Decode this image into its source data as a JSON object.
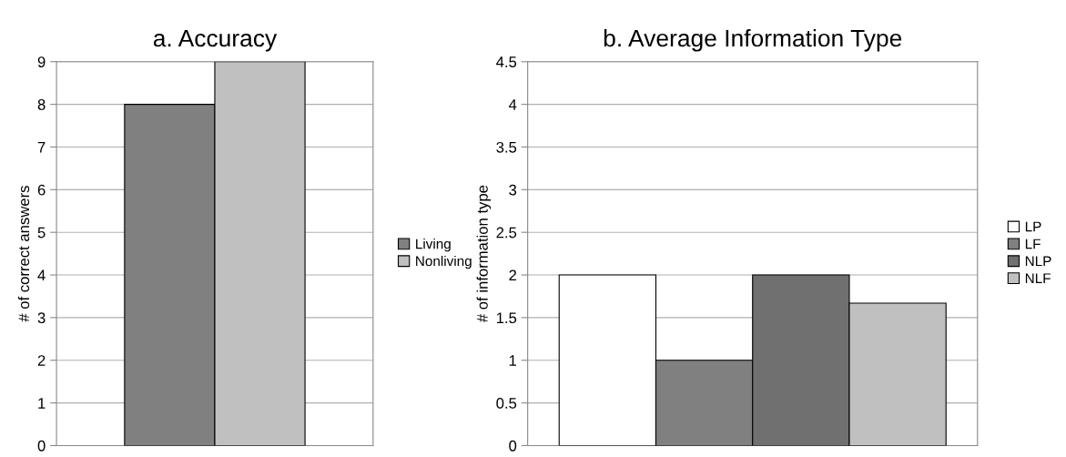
{
  "chart_data": [
    {
      "type": "bar",
      "title": "a. Accuracy",
      "ylabel": "# of correct answers",
      "categories": [
        null
      ],
      "series": [
        {
          "name": "Living",
          "color": "#808080",
          "values": [
            8
          ]
        },
        {
          "name": "Nonliving",
          "color": "#c0c0c0",
          "values": [
            9
          ]
        }
      ],
      "ylim": [
        0,
        9
      ],
      "yticks": [
        0,
        1,
        2,
        3,
        4,
        5,
        6,
        7,
        8,
        9
      ],
      "grid": "y",
      "legend": "right"
    },
    {
      "type": "bar",
      "title": "b. Average Information Type",
      "ylabel": "# of information type",
      "categories": [
        null
      ],
      "series": [
        {
          "name": "LP",
          "color": "#ffffff",
          "values": [
            2
          ]
        },
        {
          "name": "LF",
          "color": "#808080",
          "values": [
            1
          ]
        },
        {
          "name": "NLP",
          "color": "#707070",
          "values": [
            2
          ]
        },
        {
          "name": "NLF",
          "color": "#c0c0c0",
          "values": [
            1.67
          ]
        }
      ],
      "ylim": [
        0,
        4.5
      ],
      "yticks": [
        0,
        0.5,
        1,
        1.5,
        2,
        2.5,
        3,
        3.5,
        4,
        4.5
      ],
      "grid": "y",
      "legend": "right"
    }
  ]
}
